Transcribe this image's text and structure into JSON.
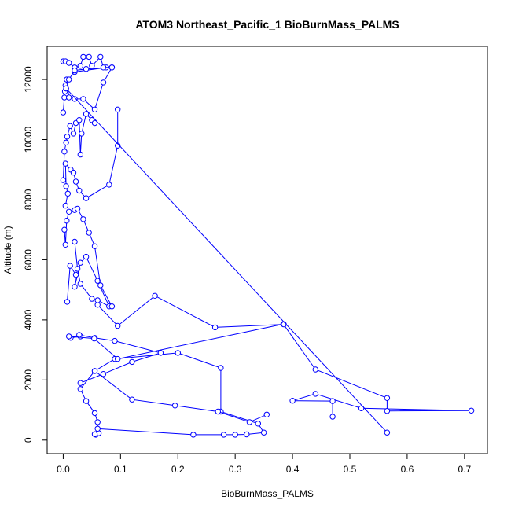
{
  "chart_data": {
    "type": "line",
    "title": "ATOM3 Northeast_Pacific_1 BioBurnMass_PALMS",
    "xlabel": "BioBurnMass_PALMS",
    "ylabel": "Altitude (m)",
    "xlim": [
      -0.028,
      0.74
    ],
    "ylim": [
      -450,
      13100
    ],
    "x_ticks": [
      "0.0",
      "0.1",
      "0.2",
      "0.3",
      "0.4",
      "0.5",
      "0.6",
      "0.7"
    ],
    "x_tick_values": [
      0,
      0.1,
      0.2,
      0.3,
      0.4,
      0.5,
      0.6,
      0.7
    ],
    "y_ticks": [
      "0",
      "2000",
      "4000",
      "6000",
      "8000",
      "10000",
      "12000"
    ],
    "y_tick_values": [
      0,
      2000,
      4000,
      6000,
      8000,
      10000,
      12000
    ],
    "grid": false,
    "series_color": "#0000ff",
    "series": [
      {
        "x": [
          0.057,
          0.062,
          0.06,
          0.055,
          0.04,
          0.03,
          0.055,
          0.09,
          0.2,
          0.275,
          0.275,
          0.34,
          0.35,
          0.32,
          0.3,
          0.28,
          0.227,
          0.06,
          0.055
        ],
        "y": [
          180,
          230,
          600,
          900,
          1300,
          1700,
          2300,
          2700,
          2900,
          2400,
          950,
          550,
          250,
          190,
          180,
          180,
          180,
          380,
          200
        ]
      },
      {
        "x": [
          0.055,
          0.12,
          0.195,
          0.27,
          0.325,
          0.355
        ],
        "y": [
          2300,
          1350,
          1150,
          950,
          600,
          850
        ]
      },
      {
        "x": [
          0.03,
          0.013,
          0.028,
          0.055,
          0.09,
          0.17,
          0.12,
          0.07,
          0.03
        ],
        "y": [
          3450,
          3400,
          3500,
          3400,
          3300,
          2900,
          2600,
          2200,
          1900
        ]
      },
      {
        "x": [
          0.01,
          0.054,
          0.095,
          0.384,
          0.44,
          0.565,
          0.565,
          0.712,
          0.52,
          0.44,
          0.4,
          0.47,
          0.47
        ],
        "y": [
          3450,
          3380,
          2700,
          3860,
          2350,
          1400,
          970,
          980,
          1060,
          1540,
          1310,
          1300,
          780
        ]
      },
      {
        "x": [
          0.06,
          0.095,
          0.16,
          0.265,
          0.385
        ],
        "y": [
          4500,
          3800,
          4800,
          3750,
          3850
        ]
      },
      {
        "x": [
          0.007,
          0.012,
          0.022,
          0.02,
          0.03,
          0.04,
          0.06,
          0.08,
          0.06,
          0.05,
          0.03,
          0.025,
          0.02
        ],
        "y": [
          4600,
          5800,
          5500,
          5100,
          5900,
          6100,
          5300,
          4450,
          4650,
          4700,
          5200,
          5700,
          6600
        ]
      },
      {
        "x": [
          0.002,
          0.004,
          0.006,
          0.01,
          0.02,
          0.025,
          0.035,
          0.045,
          0.055,
          0.065,
          0.085
        ],
        "y": [
          7000,
          6500,
          7300,
          7600,
          7650,
          7700,
          7350,
          6900,
          6450,
          5150,
          4450
        ]
      },
      {
        "x": [
          0.004,
          0.008,
          0.005,
          0.004,
          0.013,
          0.018,
          0.022,
          0.028,
          0.04,
          0.08,
          0.095,
          0.095
        ],
        "y": [
          7800,
          8200,
          8450,
          9200,
          9000,
          8900,
          8600,
          8300,
          8050,
          8500,
          9800,
          11000
        ]
      },
      {
        "x": [
          0.0,
          0.002,
          0.005,
          0.007,
          0.012,
          0.018,
          0.022,
          0.028,
          0.03,
          0.032,
          0.04,
          0.05,
          0.055
        ],
        "y": [
          8650,
          9600,
          9900,
          10100,
          10450,
          10200,
          10550,
          10650,
          9500,
          10200,
          10850,
          10650,
          10550
        ]
      },
      {
        "x": [
          0.0,
          0.002,
          0.003,
          0.004,
          0.005,
          0.006,
          0.01,
          0.02,
          0.035,
          0.055,
          0.07,
          0.085,
          0.075,
          0.02
        ],
        "y": [
          10900,
          11400,
          11600,
          11800,
          11700,
          12000,
          11400,
          11350,
          11350,
          11000,
          11900,
          12400,
          12400,
          12250
        ]
      },
      {
        "x": [
          0.0,
          0.004,
          0.01,
          0.02,
          0.03,
          0.035,
          0.045,
          0.05,
          0.065,
          0.07,
          0.085,
          0.04,
          0.02,
          0.01,
          0.005,
          0.565
        ],
        "y": [
          12600,
          12600,
          12550,
          12400,
          12450,
          12750,
          12750,
          12450,
          12750,
          12400,
          12400,
          12350,
          12300,
          12000,
          11700,
          250
        ]
      }
    ]
  }
}
